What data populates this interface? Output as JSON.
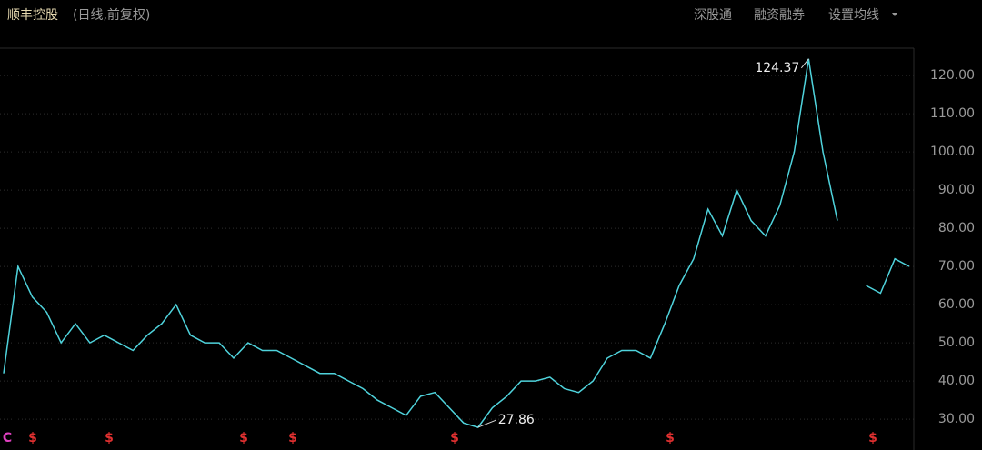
{
  "header": {
    "title": "顺丰控股",
    "subtitle": "(日线,前复权)",
    "menu": [
      "深股通",
      "融资融券",
      "设置均线"
    ]
  },
  "chart_data": {
    "type": "line",
    "categories": [
      null,
      null,
      null,
      null,
      null,
      null,
      null,
      null,
      null,
      null,
      null,
      null,
      null,
      null,
      null,
      null,
      null,
      null,
      null,
      null,
      null,
      null,
      null,
      null,
      null,
      null,
      null,
      null,
      null,
      null,
      null,
      null,
      null,
      null,
      null,
      null,
      null,
      null,
      null,
      null,
      null,
      null,
      null,
      null,
      null,
      null,
      null,
      null,
      null,
      null,
      null,
      null,
      null,
      null,
      null,
      null,
      null,
      null,
      null,
      null,
      null,
      null,
      null,
      null
    ],
    "series": [
      {
        "color": "#4fd3dc",
        "values": [
          42,
          70,
          62,
          58,
          50,
          55,
          50,
          52,
          50,
          48,
          52,
          55,
          60,
          52,
          50,
          50,
          46,
          50,
          48,
          48,
          46,
          44,
          42,
          42,
          40,
          38,
          35,
          33,
          31,
          36,
          37,
          33,
          29,
          27.86,
          33,
          36,
          40,
          40,
          41,
          38,
          37,
          40,
          46,
          48,
          48,
          46,
          55,
          65,
          72,
          85,
          78,
          90,
          82,
          78,
          86,
          100,
          124.37,
          100,
          82,
          null,
          65,
          63,
          72,
          70
        ],
        "value_labels": [
          null,
          null,
          null,
          null,
          null,
          null,
          null,
          null,
          null,
          null,
          null,
          null,
          null,
          null,
          null,
          null,
          null,
          null,
          null,
          null,
          null,
          null,
          null,
          null,
          null,
          null,
          null,
          null,
          null,
          null,
          null,
          null,
          null,
          "27.86",
          null,
          null,
          null,
          null,
          null,
          null,
          null,
          null,
          null,
          null,
          null,
          null,
          null,
          null,
          null,
          null,
          null,
          null,
          null,
          null,
          null,
          null,
          "124.37",
          null,
          null,
          null,
          null,
          null,
          null,
          null
        ]
      }
    ],
    "ylim": [
      25.5,
      126.7
    ],
    "yticks": [
      {
        "value": 30,
        "label": "30.00"
      },
      {
        "value": 40,
        "label": "40.00"
      },
      {
        "value": 50,
        "label": "50.00"
      },
      {
        "value": 60,
        "label": "60.00"
      },
      {
        "value": 70,
        "label": "70.00"
      },
      {
        "value": 80,
        "label": "80.00"
      },
      {
        "value": 90,
        "label": "90.00"
      },
      {
        "value": 100,
        "label": "100.00"
      },
      {
        "value": 110,
        "label": "110.00"
      },
      {
        "value": 120,
        "label": "120.00"
      }
    ],
    "grid": true,
    "event_markers": [
      "C",
      "$",
      "$",
      "$",
      "$",
      "$",
      "$",
      "$"
    ]
  }
}
